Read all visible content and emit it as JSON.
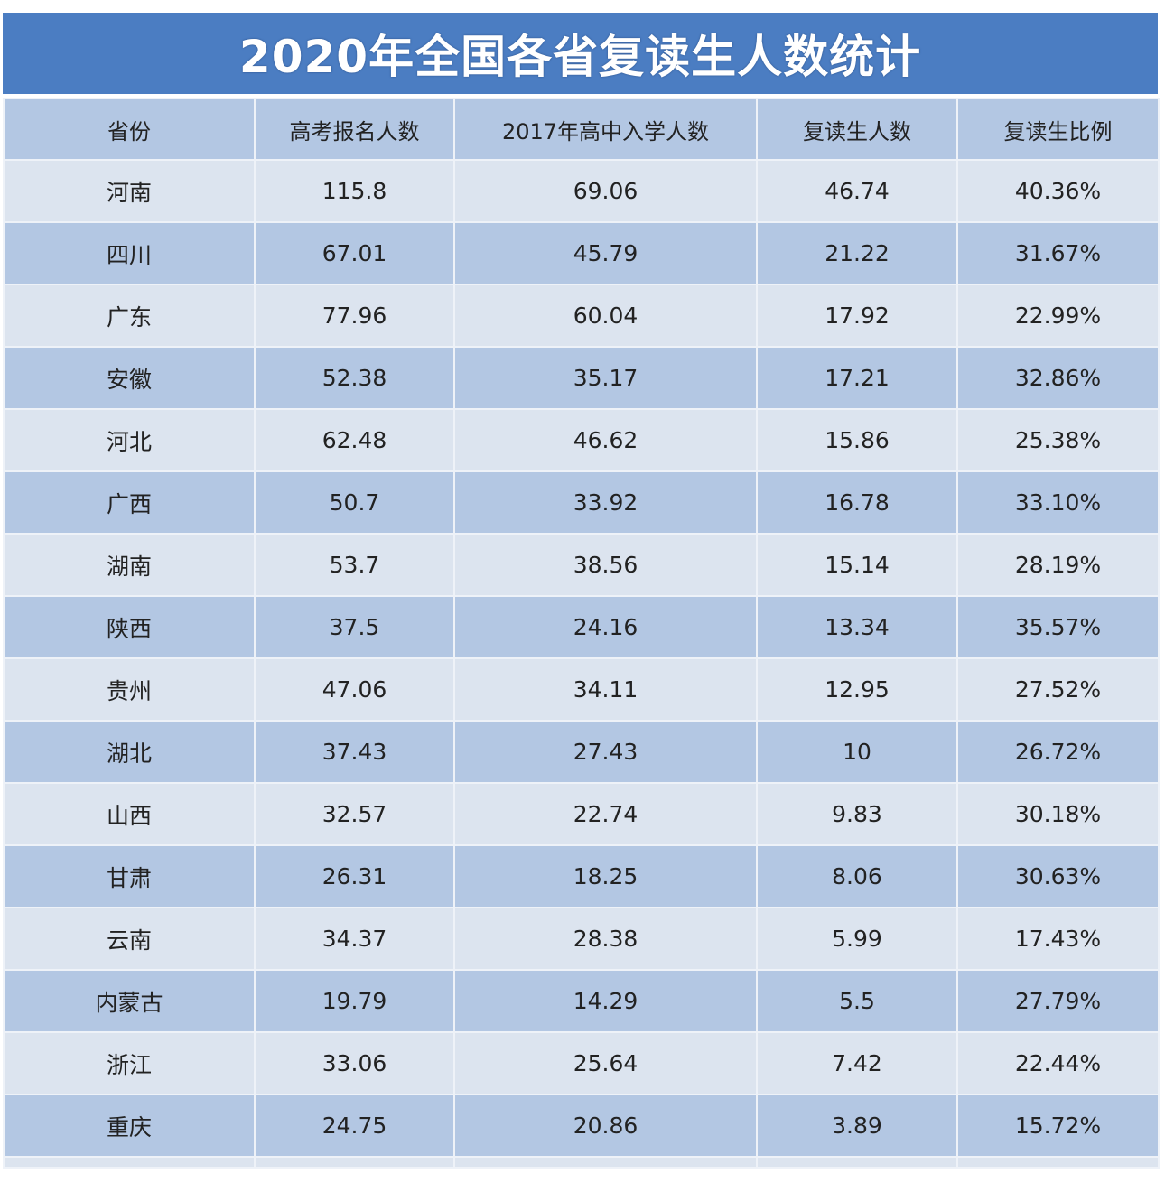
{
  "title": "2020年全国各省复读生人数统计",
  "colors": {
    "title_bg": "#4b7dc2",
    "row_light": "#dce4ef",
    "row_dark": "#b3c7e3"
  },
  "table": {
    "headers": [
      "省份",
      "高考报名人数",
      "2017年高中入学人数",
      "复读生人数",
      "复读生比例"
    ],
    "rows": [
      [
        "河南",
        "115.8",
        "69.06",
        "46.74",
        "40.36%"
      ],
      [
        "四川",
        "67.01",
        "45.79",
        "21.22",
        "31.67%"
      ],
      [
        "广东",
        "77.96",
        "60.04",
        "17.92",
        "22.99%"
      ],
      [
        "安徽",
        "52.38",
        "35.17",
        "17.21",
        "32.86%"
      ],
      [
        "河北",
        "62.48",
        "46.62",
        "15.86",
        "25.38%"
      ],
      [
        "广西",
        "50.7",
        "33.92",
        "16.78",
        "33.10%"
      ],
      [
        "湖南",
        "53.7",
        "38.56",
        "15.14",
        "28.19%"
      ],
      [
        "陕西",
        "37.5",
        "24.16",
        "13.34",
        "35.57%"
      ],
      [
        "贵州",
        "47.06",
        "34.11",
        "12.95",
        "27.52%"
      ],
      [
        "湖北",
        "37.43",
        "27.43",
        "10",
        "26.72%"
      ],
      [
        "山西",
        "32.57",
        "22.74",
        "9.83",
        "30.18%"
      ],
      [
        "甘肃",
        "26.31",
        "18.25",
        "8.06",
        "30.63%"
      ],
      [
        "云南",
        "34.37",
        "28.38",
        "5.99",
        "17.43%"
      ],
      [
        "内蒙古",
        "19.79",
        "14.29",
        "5.5",
        "27.79%"
      ],
      [
        "浙江",
        "33.06",
        "25.64",
        "7.42",
        "22.44%"
      ],
      [
        "重庆",
        "24.75",
        "20.86",
        "3.89",
        "15.72%"
      ]
    ]
  }
}
